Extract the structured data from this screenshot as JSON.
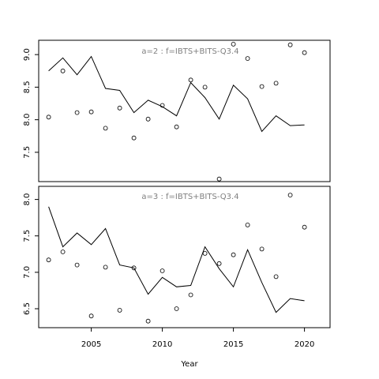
{
  "chart_data": {
    "type": "line",
    "xlabel": "Year",
    "x_ticks": [
      2005,
      2010,
      2015,
      2020
    ],
    "xlim": [
      2001.3,
      2021.8
    ],
    "panels": [
      {
        "title": "a=2  :  f=IBTS+BITS-Q3.4",
        "ylim": [
          7.05,
          9.22
        ],
        "y_ticks": [
          "7.5",
          "8.0",
          "8.5",
          "9.0"
        ],
        "series": [
          {
            "style": "line",
            "x": [
              2002,
              2003,
              2004,
              2005,
              2006,
              2007,
              2008,
              2009,
              2010,
              2011,
              2012,
              2013,
              2014,
              2015,
              2016,
              2017,
              2018,
              2019,
              2020
            ],
            "values": [
              8.75,
              8.95,
              8.69,
              8.97,
              8.48,
              8.45,
              8.11,
              8.3,
              8.2,
              8.06,
              8.57,
              8.34,
              8.01,
              8.53,
              8.32,
              7.82,
              8.06,
              7.91,
              7.92
            ]
          },
          {
            "style": "points",
            "x": [
              2002,
              2003,
              2004,
              2005,
              2006,
              2007,
              2008,
              2009,
              2010,
              2011,
              2012,
              2013,
              2014,
              2015,
              2016,
              2017,
              2018,
              2019,
              2020
            ],
            "values": [
              8.04,
              8.75,
              8.11,
              8.12,
              7.87,
              8.18,
              7.72,
              8.01,
              8.22,
              7.89,
              8.61,
              8.5,
              7.09,
              9.16,
              8.94,
              8.51,
              8.56,
              9.15,
              9.03
            ]
          }
        ]
      },
      {
        "title": "a=3  :  f=IBTS+BITS-Q3.4",
        "ylim": [
          6.24,
          8.18
        ],
        "y_ticks": [
          "6.5",
          "7.0",
          "7.5",
          "8.0"
        ],
        "series": [
          {
            "style": "line",
            "x": [
              2002,
              2003,
              2004,
              2005,
              2006,
              2007,
              2008,
              2009,
              2010,
              2011,
              2012,
              2013,
              2014,
              2015,
              2016,
              2017,
              2018,
              2019,
              2020
            ],
            "values": [
              7.9,
              7.35,
              7.54,
              7.38,
              7.6,
              7.1,
              7.06,
              6.7,
              6.93,
              6.8,
              6.82,
              7.35,
              7.05,
              6.8,
              7.31,
              6.86,
              6.45,
              6.64,
              6.61
            ]
          },
          {
            "style": "points",
            "x": [
              2002,
              2003,
              2004,
              2005,
              2006,
              2007,
              2008,
              2009,
              2010,
              2011,
              2012,
              2013,
              2014,
              2015,
              2016,
              2017,
              2018,
              2019,
              2020
            ],
            "values": [
              7.17,
              7.28,
              7.1,
              6.4,
              7.07,
              6.48,
              7.06,
              6.33,
              7.02,
              6.5,
              6.69,
              7.26,
              7.12,
              7.24,
              7.65,
              7.32,
              6.94,
              8.06,
              7.62
            ]
          }
        ]
      }
    ]
  }
}
